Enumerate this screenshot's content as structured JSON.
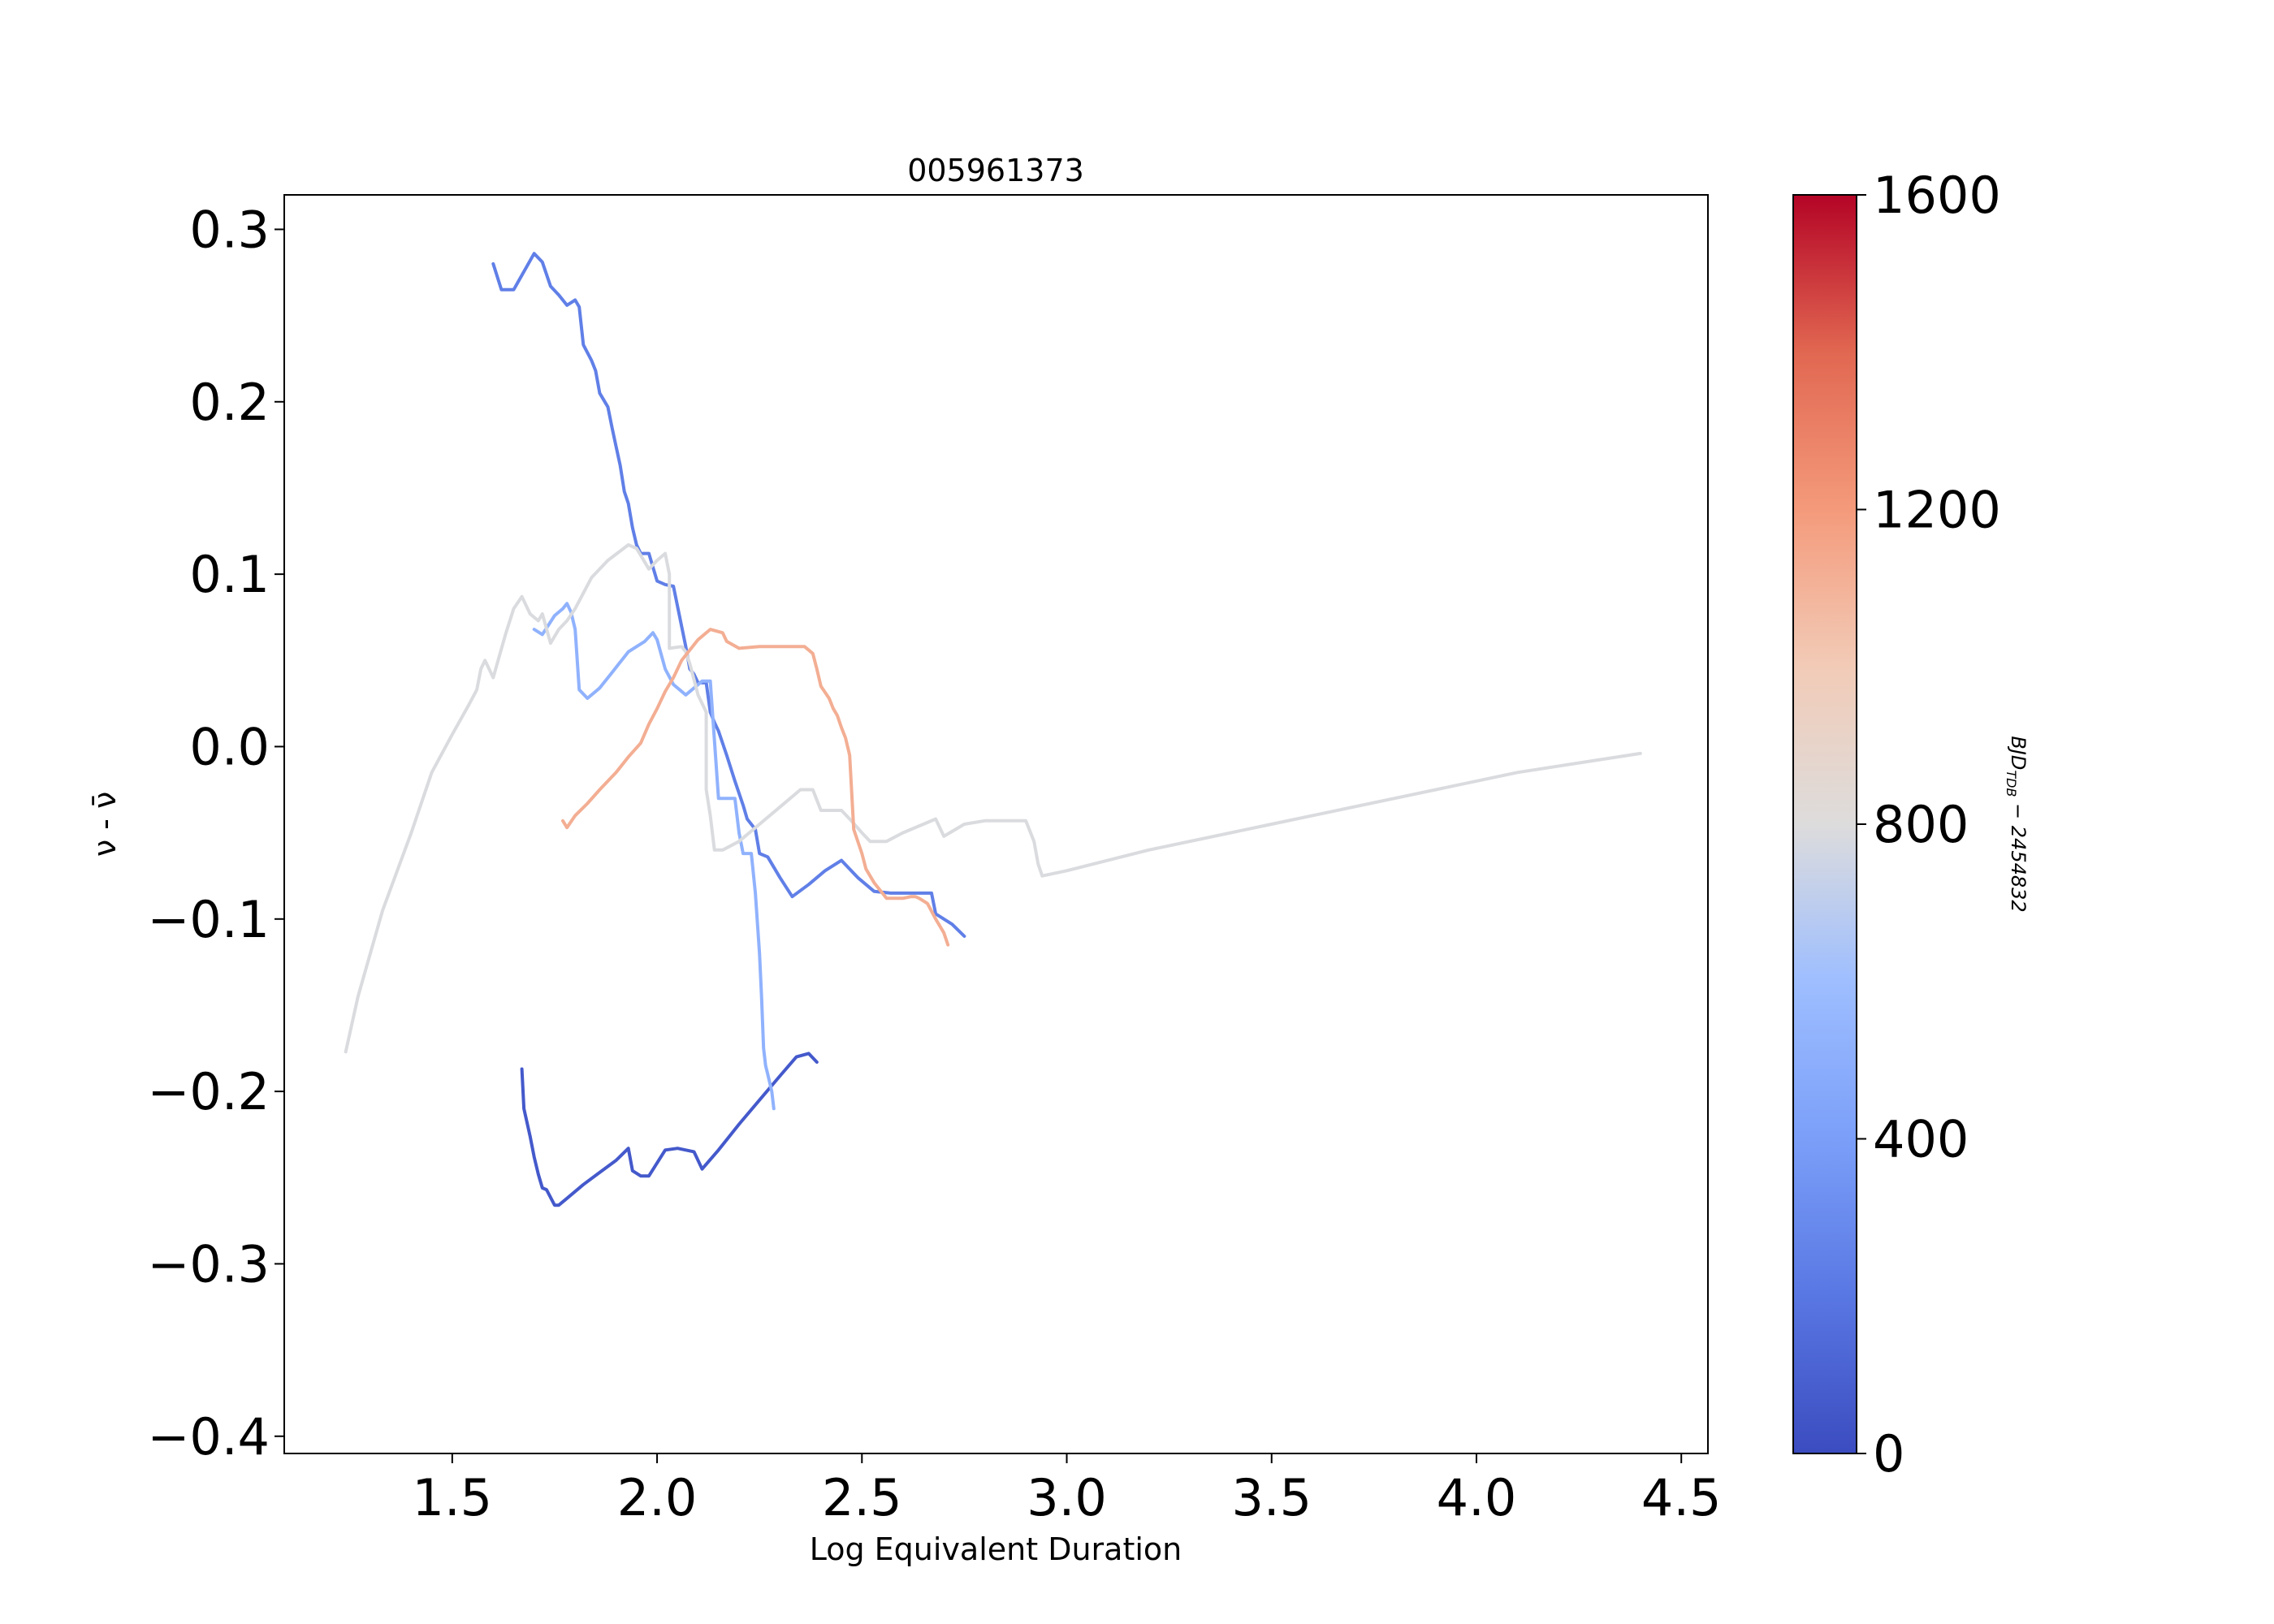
{
  "chart_data": {
    "type": "line",
    "title": "005961373",
    "xlabel": "Log Equivalent Duration",
    "ylabel": "ν - ν̄",
    "xlim": [
      1.09,
      4.565
    ],
    "ylim": [
      -0.41,
      0.32
    ],
    "xticks": [
      1.5,
      2.0,
      2.5,
      3.0,
      3.5,
      4.0,
      4.5
    ],
    "xtick_labels": [
      "1.5",
      "2.0",
      "2.5",
      "3.0",
      "3.5",
      "4.0",
      "4.5"
    ],
    "yticks": [
      0.3,
      0.2,
      0.1,
      0.0,
      -0.1,
      -0.2,
      -0.3,
      -0.4
    ],
    "ytick_labels": [
      "0.3",
      "0.2",
      "0.1",
      "0.0",
      "−0.1",
      "−0.2",
      "−0.3",
      "−0.4"
    ],
    "grid": false,
    "colorbar": {
      "label": "BJD_TDB − 2454832",
      "label_display": "BJD",
      "label_sub": "TDB",
      "label_suffix": " − 2454832",
      "colormap": "coolwarm",
      "range": [
        0,
        1600
      ],
      "ticks": [
        0,
        400,
        800,
        1200,
        1600
      ],
      "tick_labels": [
        "0",
        "400",
        "800",
        "1200",
        "1600"
      ]
    },
    "series": [
      {
        "time": 60,
        "x": [
          1.67,
          1.675,
          1.69,
          1.7,
          1.71,
          1.72,
          1.73,
          1.75,
          1.76,
          1.78,
          1.82,
          1.86,
          1.9,
          1.93,
          1.94,
          1.96,
          1.98,
          2.02,
          2.05,
          2.09,
          2.11,
          2.15,
          2.2,
          2.25,
          2.3,
          2.34,
          2.37,
          2.39
        ],
        "y": [
          -0.187,
          -0.21,
          -0.226,
          -0.238,
          -0.248,
          -0.256,
          -0.257,
          -0.266,
          -0.266,
          -0.262,
          -0.254,
          -0.247,
          -0.24,
          -0.233,
          -0.246,
          -0.249,
          -0.249,
          -0.234,
          -0.233,
          -0.235,
          -0.245,
          -0.234,
          -0.219,
          -0.205,
          -0.191,
          -0.18,
          -0.178,
          -0.183
        ]
      },
      {
        "time": 240,
        "x": [
          1.6,
          1.62,
          1.65,
          1.7,
          1.72,
          1.74,
          1.76,
          1.78,
          1.8,
          1.81,
          1.82,
          1.84,
          1.85,
          1.86,
          1.88,
          1.89,
          1.9,
          1.91,
          1.92,
          1.93,
          1.94,
          1.95,
          1.96,
          1.98,
          1.99,
          2.0,
          2.02,
          2.04,
          2.07,
          2.08,
          2.09,
          2.1,
          2.12,
          2.13,
          2.14,
          2.15,
          2.17,
          2.19,
          2.21,
          2.22,
          2.24,
          2.25,
          2.27,
          2.3,
          2.33,
          2.37,
          2.41,
          2.45,
          2.49,
          2.53,
          2.57,
          2.6,
          2.67,
          2.68,
          2.72,
          2.75
        ],
        "y": [
          0.28,
          0.265,
          0.265,
          0.286,
          0.281,
          0.267,
          0.262,
          0.256,
          0.259,
          0.255,
          0.233,
          0.224,
          0.218,
          0.205,
          0.197,
          0.185,
          0.174,
          0.163,
          0.148,
          0.141,
          0.127,
          0.117,
          0.112,
          0.112,
          0.104,
          0.096,
          0.094,
          0.093,
          0.058,
          0.045,
          0.042,
          0.037,
          0.037,
          0.02,
          0.014,
          0.009,
          -0.005,
          -0.02,
          -0.034,
          -0.042,
          -0.048,
          -0.062,
          -0.064,
          -0.076,
          -0.087,
          -0.08,
          -0.072,
          -0.066,
          -0.076,
          -0.084,
          -0.085,
          -0.085,
          -0.085,
          -0.097,
          -0.103,
          -0.11
        ]
      },
      {
        "time": 520,
        "x": [
          1.7,
          1.72,
          1.75,
          1.77,
          1.78,
          1.79,
          1.8,
          1.81,
          1.83,
          1.86,
          1.89,
          1.93,
          1.97,
          1.99,
          2.0,
          2.02,
          2.04,
          2.07,
          2.09,
          2.11,
          2.13,
          2.15,
          2.17,
          2.19,
          2.2,
          2.21,
          2.23,
          2.24,
          2.25,
          2.255,
          2.26,
          2.265,
          2.27,
          2.28,
          2.285
        ],
        "y": [
          0.068,
          0.065,
          0.076,
          0.08,
          0.083,
          0.078,
          0.068,
          0.033,
          0.028,
          0.034,
          0.043,
          0.055,
          0.061,
          0.066,
          0.062,
          0.045,
          0.036,
          0.03,
          0.034,
          0.038,
          0.038,
          -0.03,
          -0.03,
          -0.03,
          -0.05,
          -0.062,
          -0.062,
          -0.085,
          -0.12,
          -0.145,
          -0.175,
          -0.185,
          -0.19,
          -0.2,
          -0.21
        ]
      },
      {
        "time": 790,
        "x": [
          1.24,
          1.27,
          1.33,
          1.4,
          1.45,
          1.5,
          1.54,
          1.56,
          1.57,
          1.58,
          1.6,
          1.63,
          1.65,
          1.67,
          1.69,
          1.71,
          1.72,
          1.74,
          1.76,
          1.78,
          1.8,
          1.84,
          1.88,
          1.93,
          1.95,
          1.98,
          2.0,
          2.02,
          2.03,
          2.03,
          2.06,
          2.07,
          2.08,
          2.1,
          2.11,
          2.12,
          2.12,
          2.13,
          2.14,
          2.15,
          2.16,
          2.2,
          2.25,
          2.3,
          2.35,
          2.38,
          2.4,
          2.45,
          2.47,
          2.5,
          2.52,
          2.56,
          2.6,
          2.65,
          2.68,
          2.7,
          2.75,
          2.8,
          2.84,
          2.9,
          2.92,
          2.93,
          2.94,
          3.0,
          3.2,
          3.5,
          3.8,
          4.1,
          4.4
        ],
        "y": [
          -0.177,
          -0.145,
          -0.095,
          -0.05,
          -0.015,
          0.007,
          0.024,
          0.033,
          0.045,
          0.05,
          0.04,
          0.065,
          0.08,
          0.087,
          0.077,
          0.073,
          0.077,
          0.06,
          0.068,
          0.073,
          0.08,
          0.098,
          0.108,
          0.117,
          0.115,
          0.103,
          0.108,
          0.112,
          0.1,
          0.057,
          0.058,
          0.055,
          0.048,
          0.03,
          0.025,
          0.02,
          -0.025,
          -0.04,
          -0.06,
          -0.06,
          -0.06,
          -0.055,
          -0.045,
          -0.035,
          -0.025,
          -0.025,
          -0.037,
          -0.037,
          -0.042,
          -0.05,
          -0.055,
          -0.055,
          -0.05,
          -0.045,
          -0.042,
          -0.052,
          -0.045,
          -0.043,
          -0.043,
          -0.043,
          -0.055,
          -0.068,
          -0.075,
          -0.072,
          -0.06,
          -0.045,
          -0.03,
          -0.015,
          -0.004
        ]
      },
      {
        "time": 1120,
        "x": [
          1.77,
          1.78,
          1.8,
          1.83,
          1.86,
          1.9,
          1.93,
          1.96,
          1.98,
          2.0,
          2.02,
          2.04,
          2.06,
          2.08,
          2.1,
          2.13,
          2.16,
          2.17,
          2.2,
          2.25,
          2.3,
          2.36,
          2.38,
          2.39,
          2.4,
          2.42,
          2.43,
          2.44,
          2.45,
          2.46,
          2.47,
          2.48,
          2.5,
          2.51,
          2.53,
          2.56,
          2.6,
          2.62,
          2.63,
          2.64,
          2.66,
          2.68,
          2.7,
          2.71
        ],
        "y": [
          -0.043,
          -0.047,
          -0.04,
          -0.033,
          -0.025,
          -0.015,
          -0.006,
          0.002,
          0.013,
          0.022,
          0.032,
          0.04,
          0.05,
          0.056,
          0.062,
          0.068,
          0.066,
          0.061,
          0.057,
          0.058,
          0.058,
          0.058,
          0.054,
          0.045,
          0.035,
          0.028,
          0.022,
          0.018,
          0.011,
          0.005,
          -0.005,
          -0.048,
          -0.062,
          -0.071,
          -0.079,
          -0.088,
          -0.088,
          -0.087,
          -0.087,
          -0.088,
          -0.091,
          -0.1,
          -0.108,
          -0.115
        ]
      }
    ]
  }
}
